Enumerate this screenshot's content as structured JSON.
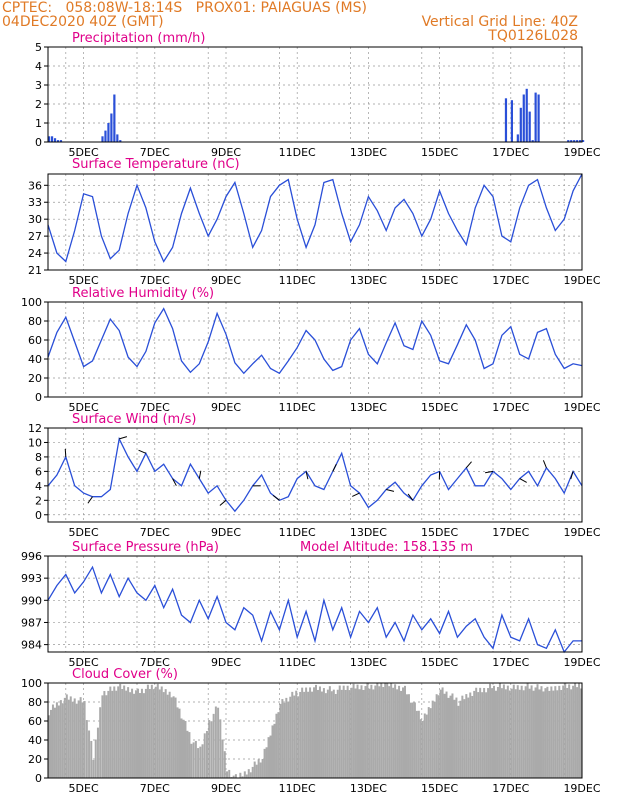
{
  "header": {
    "line1": "CPTEC:   058:08W-18:14S   PROX01: PAIAGUAS (MS)",
    "line2_left": "04DEC2020 40Z (GMT)",
    "line2_right": "Vertical Grid Line: 40Z",
    "line3_right": "TQ0126L028"
  },
  "colors": {
    "header": "#e07a26",
    "title": "#e0008a",
    "series": "#2a4fd8",
    "arrow": "#000000",
    "cloud": "#aaaaaa",
    "grid": "#999999"
  },
  "x_tick_labels": [
    "5DEC",
    "7DEC",
    "9DEC",
    "11DEC",
    "13DEC",
    "15DEC",
    "17DEC",
    "19DEC"
  ],
  "chart_data": [
    {
      "type": "bar",
      "title": "Precipitation (mm/h)",
      "ylim": [
        0,
        5
      ],
      "y_ticks": [
        0,
        1,
        2,
        3,
        4,
        5
      ],
      "grid": true,
      "x_range_hours": [
        0,
        360
      ],
      "x": [
        0,
        2,
        4,
        6,
        8,
        36,
        38,
        40,
        42,
        44,
        46,
        48,
        308,
        312,
        316,
        318,
        320,
        322,
        324,
        326,
        328,
        330,
        350,
        352,
        354,
        356,
        358,
        360
      ],
      "values": [
        0.3,
        0.3,
        0.2,
        0.1,
        0.1,
        0.3,
        0.6,
        1.0,
        1.5,
        2.5,
        0.4,
        0.1,
        2.3,
        2.2,
        0.4,
        1.8,
        2.5,
        2.8,
        1.6,
        0.1,
        2.6,
        2.5,
        0.1,
        0.1,
        0.1,
        0.1,
        0.1,
        0.1
      ]
    },
    {
      "type": "line",
      "title": "Surface Temperature (nC)",
      "ylim": [
        21,
        38
      ],
      "y_ticks": [
        21,
        24,
        27,
        30,
        33,
        36
      ],
      "grid": true,
      "x_range_hours": [
        0,
        360
      ],
      "x": [
        0,
        6,
        12,
        18,
        24,
        30,
        36,
        42,
        48,
        54,
        60,
        66,
        72,
        78,
        84,
        90,
        96,
        102,
        108,
        114,
        120,
        126,
        132,
        138,
        144,
        150,
        156,
        162,
        168,
        174,
        180,
        186,
        192,
        198,
        204,
        210,
        216,
        222,
        228,
        234,
        240,
        246,
        252,
        258,
        264,
        270,
        276,
        282,
        288,
        294,
        300,
        306,
        312,
        318,
        324,
        330,
        336,
        342,
        348,
        354,
        360
      ],
      "values": [
        29,
        24,
        22.5,
        28,
        34.5,
        34,
        27,
        23,
        24.5,
        31,
        36,
        32,
        26,
        22.5,
        25,
        31,
        35.5,
        31,
        27,
        30,
        34,
        36.5,
        31,
        25,
        28,
        34,
        36,
        37,
        30,
        25,
        29,
        36.5,
        37,
        31,
        26,
        29,
        34,
        31.5,
        28,
        32,
        33.5,
        31,
        27,
        30,
        35,
        31,
        28,
        25.5,
        32,
        36,
        34,
        27,
        26,
        32,
        36,
        37,
        32,
        28,
        30,
        35,
        38
      ]
    },
    {
      "type": "line",
      "title": "Relative Humidity (%)",
      "ylim": [
        0,
        100
      ],
      "y_ticks": [
        0,
        20,
        40,
        60,
        80,
        100
      ],
      "grid": true,
      "x_range_hours": [
        0,
        360
      ],
      "x": [
        0,
        6,
        12,
        18,
        24,
        30,
        36,
        42,
        48,
        54,
        60,
        66,
        72,
        78,
        84,
        90,
        96,
        102,
        108,
        114,
        120,
        126,
        132,
        138,
        144,
        150,
        156,
        162,
        168,
        174,
        180,
        186,
        192,
        198,
        204,
        210,
        216,
        222,
        228,
        234,
        240,
        246,
        252,
        258,
        264,
        270,
        276,
        282,
        288,
        294,
        300,
        306,
        312,
        318,
        324,
        330,
        336,
        342,
        348,
        354,
        360
      ],
      "values": [
        42,
        68,
        84,
        58,
        32,
        38,
        60,
        82,
        70,
        42,
        32,
        48,
        78,
        93,
        72,
        38,
        26,
        35,
        58,
        88,
        66,
        36,
        25,
        35,
        44,
        30,
        25,
        38,
        52,
        70,
        60,
        40,
        28,
        32,
        60,
        72,
        45,
        35,
        57,
        78,
        54,
        50,
        80,
        65,
        38,
        35,
        55,
        76,
        60,
        30,
        35,
        65,
        74,
        45,
        40,
        68,
        72,
        45,
        30,
        35,
        33
      ]
    },
    {
      "type": "line",
      "title": "Surface Wind (m/s)",
      "ylim": [
        -1,
        12
      ],
      "y_ticks": [
        0,
        2,
        4,
        6,
        8,
        10,
        12
      ],
      "grid": true,
      "x_range_hours": [
        0,
        360
      ],
      "x": [
        0,
        6,
        12,
        18,
        24,
        30,
        36,
        42,
        48,
        54,
        60,
        66,
        72,
        78,
        84,
        90,
        96,
        102,
        108,
        114,
        120,
        126,
        132,
        138,
        144,
        150,
        156,
        162,
        168,
        174,
        180,
        186,
        192,
        198,
        204,
        210,
        216,
        222,
        228,
        234,
        240,
        246,
        252,
        258,
        264,
        270,
        276,
        282,
        288,
        294,
        300,
        306,
        312,
        318,
        324,
        330,
        336,
        342,
        348,
        354,
        360
      ],
      "values": [
        4,
        5.5,
        8,
        4,
        3,
        2.5,
        2.5,
        3.5,
        10.5,
        8,
        6,
        8.5,
        6,
        7,
        5,
        4,
        7,
        5,
        3,
        4,
        2,
        0.5,
        2,
        4,
        5.5,
        3,
        2,
        2.5,
        5,
        6,
        4,
        3.5,
        6,
        8.5,
        4,
        3,
        1,
        2,
        3.5,
        4.5,
        3,
        2,
        4,
        5.5,
        6,
        3.5,
        5,
        6.5,
        4,
        4,
        6,
        5,
        3.5,
        5,
        6,
        4,
        6.5,
        5,
        3,
        6,
        4
      ]
    },
    {
      "type": "line",
      "title": "Surface Pressure (hPa)",
      "annotation": "Model Altitude: 158.135 m",
      "ylim": [
        983,
        996
      ],
      "y_ticks": [
        984,
        987,
        990,
        993,
        996
      ],
      "grid": true,
      "x_range_hours": [
        0,
        360
      ],
      "x": [
        0,
        6,
        12,
        18,
        24,
        30,
        36,
        42,
        48,
        54,
        60,
        66,
        72,
        78,
        84,
        90,
        96,
        102,
        108,
        114,
        120,
        126,
        132,
        138,
        144,
        150,
        156,
        162,
        168,
        174,
        180,
        186,
        192,
        198,
        204,
        210,
        216,
        222,
        228,
        234,
        240,
        246,
        252,
        258,
        264,
        270,
        276,
        282,
        288,
        294,
        300,
        306,
        312,
        318,
        324,
        330,
        336,
        342,
        348,
        354,
        360
      ],
      "values": [
        990,
        992,
        993.5,
        991,
        992.5,
        994.5,
        991,
        993.5,
        990.5,
        993,
        991,
        990,
        992,
        989,
        991.5,
        988,
        987,
        990,
        987.5,
        990.5,
        987,
        986,
        989,
        988,
        984.5,
        988.5,
        986,
        990,
        985,
        988.5,
        984.5,
        990,
        986,
        989,
        985,
        988.5,
        987,
        989,
        985,
        987,
        984.5,
        988,
        986,
        987.5,
        985.5,
        988.5,
        985,
        986.5,
        987.5,
        985,
        983.5,
        988,
        985,
        984.5,
        987.5,
        984,
        983.5,
        986,
        983,
        984.5,
        984.5
      ]
    },
    {
      "type": "area",
      "title": "Cloud Cover (%)",
      "ylim": [
        0,
        100
      ],
      "y_ticks": [
        0,
        20,
        40,
        60,
        80,
        100
      ],
      "grid": true,
      "x_range_hours": [
        0,
        360
      ],
      "x": [
        0,
        12,
        24,
        30,
        36,
        48,
        60,
        72,
        84,
        96,
        102,
        108,
        114,
        120,
        126,
        132,
        144,
        156,
        168,
        180,
        192,
        204,
        216,
        228,
        240,
        252,
        264,
        276,
        288,
        300,
        312,
        324,
        336,
        348,
        360
      ],
      "values": [
        70,
        85,
        80,
        20,
        90,
        95,
        92,
        96,
        88,
        40,
        30,
        60,
        75,
        10,
        0,
        5,
        20,
        80,
        90,
        95,
        92,
        96,
        97,
        98,
        95,
        60,
        95,
        80,
        92,
        96,
        95,
        97,
        92,
        98,
        96
      ]
    }
  ]
}
